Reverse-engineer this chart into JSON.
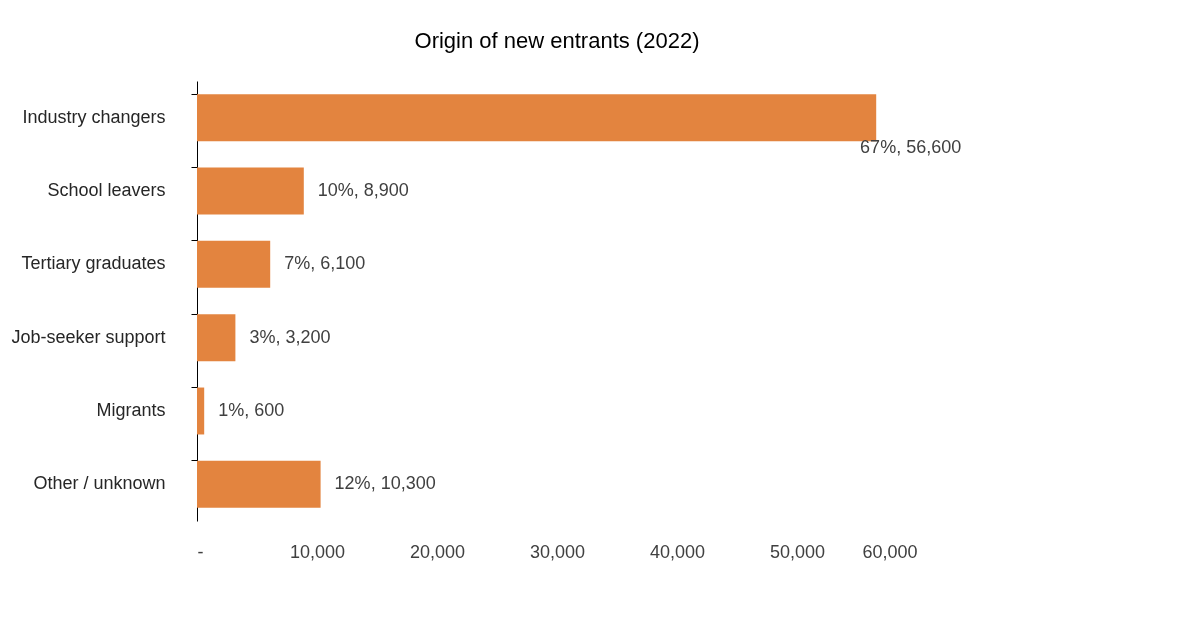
{
  "chart_data": {
    "type": "bar",
    "orientation": "horizontal",
    "title": "Origin of new entrants (2022)",
    "categories": [
      "Industry changers",
      "School leavers",
      "Tertiary graduates",
      "Job-seeker support",
      "Migrants",
      "Other / unknown"
    ],
    "values": [
      56600,
      8900,
      6100,
      3200,
      600,
      10300
    ],
    "value_labels": [
      "67%,  56,600",
      "10%,  8,900",
      "7%,  6,100",
      "3%,  3,200",
      "1%,  600",
      "12%,  10,300"
    ],
    "color": "#e3843f",
    "xlim": [
      0,
      60000
    ],
    "xticks": [
      {
        "value": 0,
        "label": "-"
      },
      {
        "value": 10000,
        "label": "10,000"
      },
      {
        "value": 20000,
        "label": "20,000"
      },
      {
        "value": 30000,
        "label": "30,000"
      },
      {
        "value": 40000,
        "label": "40,000"
      },
      {
        "value": 50000,
        "label": "50,000"
      },
      {
        "value": 60000,
        "label": "60,000"
      }
    ],
    "grid": false
  }
}
